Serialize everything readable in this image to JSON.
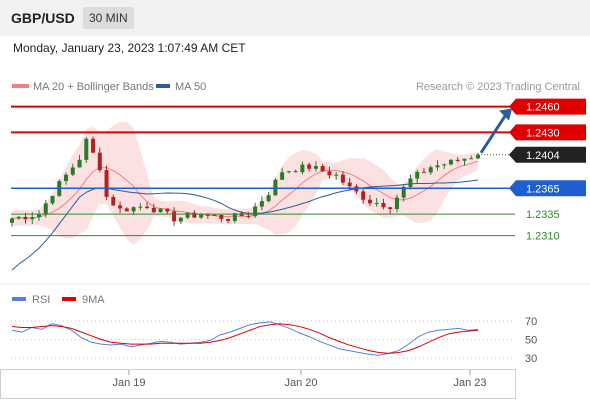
{
  "header": {
    "pair": "GBP/USD",
    "timeframe": "30 MIN"
  },
  "timestamp": "Monday, January 23, 2023 1:07:49 AM CET",
  "legend": {
    "bollinger": "MA 20 + Bollinger Bands",
    "ma50": "MA 50",
    "rsi": "RSI",
    "rsi_ma": "9MA"
  },
  "credit": "Research © 2023 Trading Central",
  "colors": {
    "candle_up": "#2a7a2a",
    "candle_down": "#b22222",
    "band_fill": "#fadcdc",
    "ma20": "#f08080",
    "ma50": "#2f5b9b",
    "resistance": "#e00000",
    "pivot": "#1f5fd0",
    "support": "#2e8b2e",
    "current": "#222222",
    "rsi_line": "#5b7fd6",
    "rsi_ma": "#e00000"
  },
  "chart_data": [
    {
      "type": "candlestick",
      "title": "GBP/USD",
      "x_ticks": [
        "Jan 19",
        "Jan 20",
        "Jan 23"
      ],
      "y_range": [
        1.227,
        1.247
      ],
      "levels": [
        {
          "value": 1.246,
          "label": "1.2460",
          "role": "resistance"
        },
        {
          "value": 1.243,
          "label": "1.2430",
          "role": "resistance"
        },
        {
          "value": 1.2404,
          "label": "1.2404",
          "role": "current"
        },
        {
          "value": 1.2365,
          "label": "1.2365",
          "role": "pivot"
        },
        {
          "value": 1.2335,
          "label": "1.2335",
          "role": "support"
        },
        {
          "value": 1.231,
          "label": "1.2310",
          "role": "support"
        }
      ],
      "series": [
        {
          "name": "MA 20 + Bollinger Bands",
          "style": "band"
        },
        {
          "name": "MA 50",
          "style": "line"
        }
      ],
      "close_path": [
        [
          0,
          1.233
        ],
        [
          4,
          1.2335
        ],
        [
          6,
          1.236
        ],
        [
          8,
          1.238
        ],
        [
          10,
          1.24
        ],
        [
          11,
          1.242
        ],
        [
          12,
          1.2405
        ],
        [
          13,
          1.239
        ],
        [
          14,
          1.2355
        ],
        [
          16,
          1.234
        ],
        [
          20,
          1.2345
        ],
        [
          24,
          1.233
        ],
        [
          28,
          1.2335
        ],
        [
          32,
          1.233
        ],
        [
          35,
          1.2335
        ],
        [
          38,
          1.236
        ],
        [
          40,
          1.2385
        ],
        [
          44,
          1.239
        ],
        [
          48,
          1.238
        ],
        [
          50,
          1.2365
        ],
        [
          53,
          1.235
        ],
        [
          56,
          1.2345
        ],
        [
          59,
          1.2375
        ],
        [
          62,
          1.239
        ],
        [
          65,
          1.2395
        ],
        [
          67,
          1.24
        ],
        [
          69,
          1.2404
        ]
      ],
      "n_candles": 70,
      "projection": {
        "from": 1.2404,
        "to": 1.246
      }
    },
    {
      "type": "line",
      "title": "RSI",
      "y_ticks": [
        70,
        50,
        30
      ],
      "y_range": [
        15,
        85
      ],
      "series": [
        {
          "name": "RSI",
          "values": [
            60,
            58,
            63,
            61,
            67,
            65,
            60,
            52,
            47,
            45,
            44,
            45,
            42,
            44,
            46,
            48,
            47,
            45,
            46,
            47,
            49,
            55,
            58,
            62,
            66,
            68,
            69,
            66,
            62,
            57,
            53,
            48,
            44,
            40,
            38,
            36,
            34,
            33,
            35,
            38,
            45,
            53,
            58,
            60,
            61,
            62,
            60,
            61
          ]
        },
        {
          "name": "9MA",
          "values": [
            64,
            63,
            63,
            64,
            65,
            64,
            62,
            58,
            54,
            50,
            47,
            46,
            45,
            45,
            45,
            46,
            46,
            46,
            46,
            46,
            47,
            49,
            52,
            56,
            60,
            64,
            66,
            67,
            66,
            64,
            61,
            57,
            52,
            48,
            44,
            41,
            38,
            36,
            35,
            36,
            38,
            42,
            47,
            52,
            56,
            58,
            59,
            60
          ]
        }
      ]
    }
  ]
}
